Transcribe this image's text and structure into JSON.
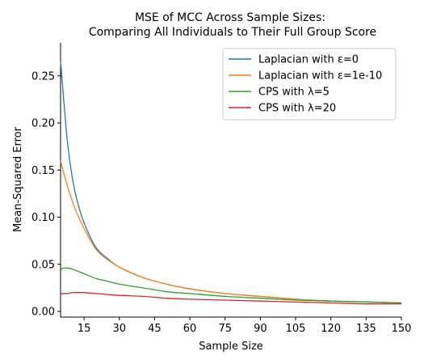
{
  "chart_data": {
    "type": "line",
    "title_lines": [
      "MSE of MCC Across Sample Sizes:",
      "Comparing All Individuals to Their Full Group Score"
    ],
    "xlabel": "Sample Size",
    "ylabel": "Mean-Squared Error",
    "xlim": [
      5,
      150
    ],
    "ylim": [
      -0.006,
      0.285
    ],
    "xticks": [
      15,
      30,
      45,
      60,
      75,
      90,
      105,
      120,
      135,
      150
    ],
    "yticks": [
      0.0,
      0.05,
      0.1,
      0.15,
      0.2,
      0.25
    ],
    "ytick_labels": [
      "0.00",
      "0.05",
      "0.10",
      "0.15",
      "0.20",
      "0.25"
    ],
    "legend_position": "top-right",
    "grid": false,
    "series": [
      {
        "name": "Laplacian with ε=0",
        "color": "#1f77b4",
        "x": [
          5,
          6,
          7,
          8,
          10,
          12,
          15,
          20,
          25,
          30,
          40,
          50,
          60,
          75,
          90,
          105,
          120,
          135,
          150
        ],
        "y": [
          0.265,
          0.235,
          0.205,
          0.178,
          0.142,
          0.118,
          0.094,
          0.068,
          0.056,
          0.047,
          0.036,
          0.029,
          0.024,
          0.019,
          0.016,
          0.013,
          0.011,
          0.01,
          0.009
        ]
      },
      {
        "name": "Laplacian with ε=1e-10",
        "color": "#ff7f0e",
        "x": [
          5,
          6,
          7,
          8,
          10,
          12,
          15,
          20,
          25,
          30,
          40,
          50,
          60,
          75,
          90,
          105,
          120,
          135,
          150
        ],
        "y": [
          0.16,
          0.15,
          0.141,
          0.132,
          0.117,
          0.104,
          0.088,
          0.066,
          0.055,
          0.047,
          0.036,
          0.029,
          0.024,
          0.019,
          0.016,
          0.013,
          0.011,
          0.01,
          0.009
        ]
      },
      {
        "name": "CPS with λ=5",
        "color": "#2ca02c",
        "x": [
          5,
          6,
          7,
          8,
          10,
          12,
          15,
          20,
          25,
          30,
          40,
          50,
          60,
          75,
          90,
          105,
          120,
          135,
          150
        ],
        "y": [
          0.044,
          0.046,
          0.046,
          0.046,
          0.045,
          0.043,
          0.04,
          0.035,
          0.032,
          0.029,
          0.025,
          0.021,
          0.019,
          0.016,
          0.014,
          0.012,
          0.011,
          0.01,
          0.009
        ]
      },
      {
        "name": "CPS with λ=20",
        "color": "#d62728",
        "x": [
          5,
          6,
          7,
          8,
          10,
          12,
          15,
          20,
          25,
          30,
          40,
          50,
          60,
          75,
          90,
          105,
          120,
          135,
          150
        ],
        "y": [
          0.018,
          0.019,
          0.019,
          0.019,
          0.02,
          0.02,
          0.02,
          0.019,
          0.018,
          0.017,
          0.016,
          0.014,
          0.013,
          0.012,
          0.011,
          0.01,
          0.009,
          0.008,
          0.008
        ]
      }
    ]
  }
}
